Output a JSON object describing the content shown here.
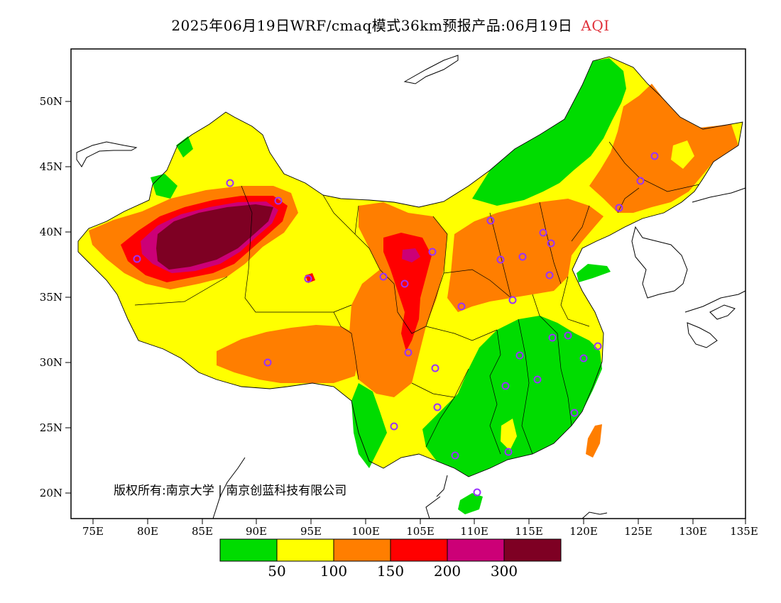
{
  "title": {
    "main": "2025年06月19日WRF/cmaq模式36km预报产品:06月19日",
    "variable": "AQI"
  },
  "map": {
    "lat_ticks": [
      "50N",
      "45N",
      "40N",
      "35N",
      "30N",
      "25N",
      "20N"
    ],
    "lon_ticks": [
      "75E",
      "80E",
      "85E",
      "90E",
      "95E",
      "100E",
      "105E",
      "110E",
      "115E",
      "120E",
      "125E",
      "130E",
      "135E"
    ],
    "copyright": "版权所有:南京大学 | 南京创蓝科技有限公司"
  },
  "colorbar": {
    "colors": [
      "#00dc00",
      "#ffff00",
      "#ff7e00",
      "#ff0000",
      "#cc0077",
      "#7e0023"
    ],
    "labels": [
      "50",
      "100",
      "150",
      "200",
      "300"
    ]
  },
  "colors": {
    "green": "#00dc00",
    "yellow": "#ffff00",
    "orange": "#ff7e00",
    "red": "#ff0000",
    "purple": "#cc0077",
    "maroon": "#7e0023",
    "city_marker": "#9933ff"
  }
}
